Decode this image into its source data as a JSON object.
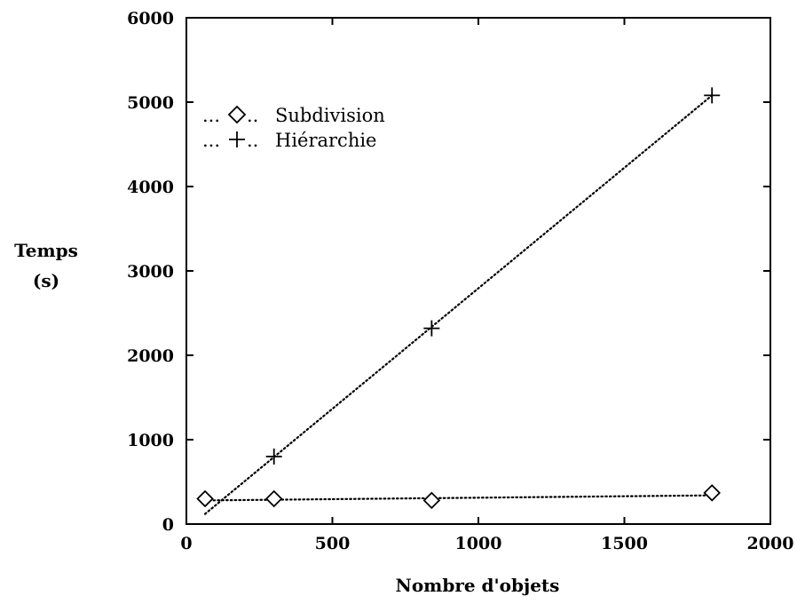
{
  "chart_data": {
    "type": "line",
    "xlabel": "Nombre d'objets",
    "ylabel_lines": [
      "Temps",
      "(s)"
    ],
    "xlim": [
      0,
      2000
    ],
    "ylim": [
      0,
      6000
    ],
    "xticks": [
      0,
      500,
      1000,
      1500,
      2000
    ],
    "yticks": [
      0,
      1000,
      2000,
      3000,
      4000,
      5000,
      6000
    ],
    "grid": false,
    "legend_position": "top-left",
    "series": [
      {
        "name": "Subdivision",
        "legend_prefix": "...",
        "legend_suffix": "..",
        "marker": "diamond",
        "line_style": "dotted",
        "x": [
          64,
          300,
          840,
          1800
        ],
        "y": [
          300,
          300,
          280,
          370
        ],
        "fit_line": {
          "x": [
            64,
            1800
          ],
          "y": [
            280,
            340
          ]
        }
      },
      {
        "name": "Hiérarchie",
        "legend_prefix": "...",
        "legend_suffix": "..",
        "marker": "plus",
        "line_style": "dotted",
        "x": [
          300,
          840,
          1800
        ],
        "y": [
          800,
          2320,
          5080
        ],
        "fit_line": {
          "x": [
            64,
            1800
          ],
          "y": [
            120,
            5080
          ]
        }
      }
    ]
  }
}
